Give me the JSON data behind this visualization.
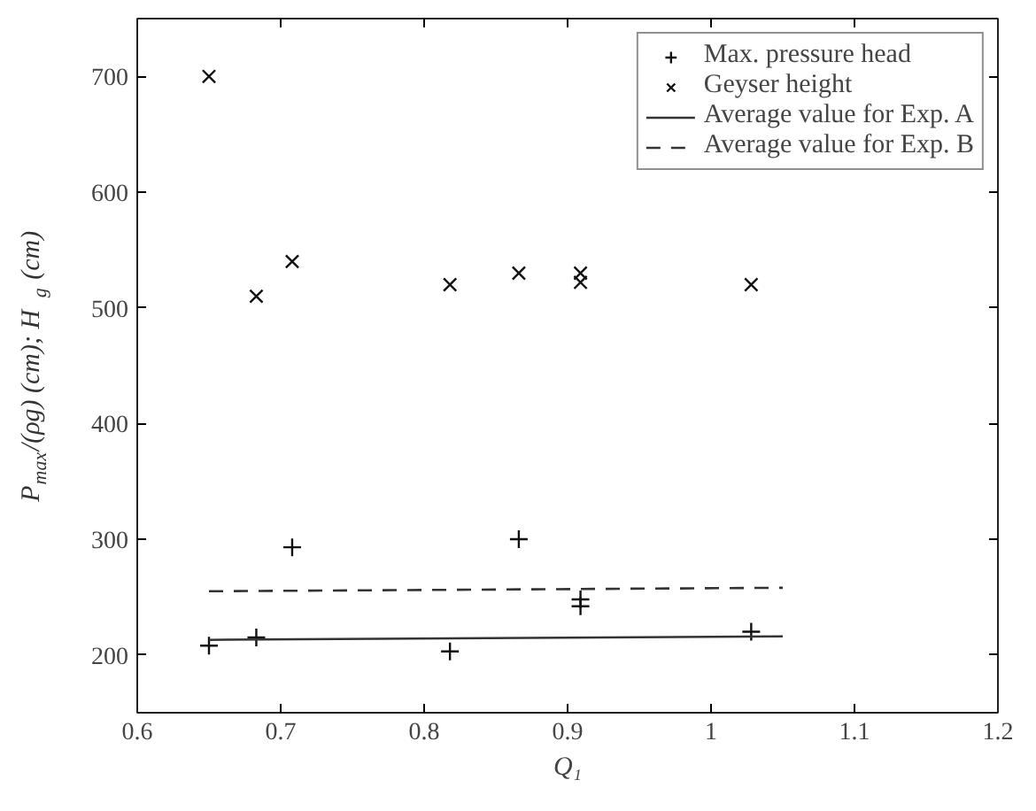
{
  "chart_data": {
    "type": "scatter",
    "xlabel": "Q₁",
    "ylabel": "P$_{max}$/(ρg) (cm);  H$_{g}$ (cm)",
    "xlim": [
      0.6,
      1.2
    ],
    "xticks": [
      0.6,
      0.7,
      0.8,
      0.9,
      1,
      1.1,
      1.2
    ],
    "ylim": [
      150,
      750
    ],
    "yticks": [
      200,
      300,
      400,
      500,
      600,
      700
    ],
    "grid": false,
    "legend": "top right",
    "series": [
      {
        "name": "Max. pressure head",
        "type": "scatter",
        "marker": "cross",
        "color": "#111111",
        "x": [
          0.65,
          0.683,
          0.708,
          0.818,
          0.866,
          0.909,
          0.909,
          1.028
        ],
        "values": [
          208,
          215,
          293,
          203,
          300,
          248,
          242,
          220
        ]
      },
      {
        "name": "Geyser height",
        "type": "scatter",
        "marker": "x",
        "color": "#111111",
        "x": [
          0.65,
          0.683,
          0.708,
          0.818,
          0.866,
          0.909,
          0.909,
          1.028
        ],
        "values": [
          700,
          510,
          540,
          520,
          530,
          530,
          522,
          520
        ]
      },
      {
        "name": "Average value for Exp. A",
        "type": "line",
        "line_style": "solid",
        "color": "#333333",
        "x": [
          0.65,
          1.05
        ],
        "values": [
          213,
          216
        ]
      },
      {
        "name": "Average value for Exp. B",
        "type": "line",
        "line_style": "dashed",
        "color": "#333333",
        "x": [
          0.65,
          1.05
        ],
        "values": [
          255,
          258
        ]
      }
    ]
  }
}
